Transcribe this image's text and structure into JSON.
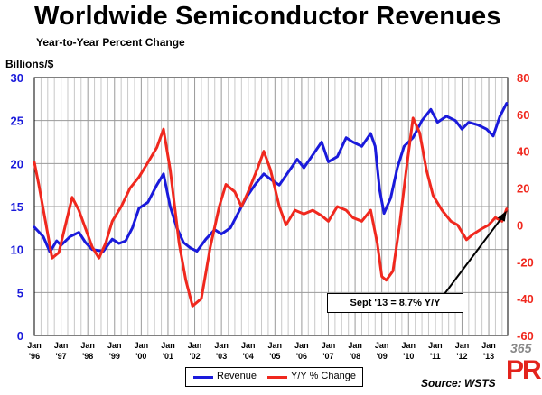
{
  "chart_data": {
    "type": "line",
    "title": "Worldwide Semiconductor Revenues",
    "subtitle": "Year-to-Year Percent Change",
    "ylabel_left": "Billions/$",
    "source": "Source: WSTS",
    "left_axis": {
      "min": 0,
      "max": 30,
      "ticks": [
        "0",
        "5",
        "10",
        "15",
        "20",
        "25",
        "30"
      ]
    },
    "right_axis": {
      "min": -60,
      "max": 80,
      "ticks": [
        "-60",
        "-40",
        "-20",
        "0",
        "20",
        "40",
        "60",
        "80"
      ]
    },
    "x_ticks": [
      {
        "month": "Jan",
        "year": "'96"
      },
      {
        "month": "Jan",
        "year": "'97"
      },
      {
        "month": "Jan",
        "year": "'98"
      },
      {
        "month": "Jan",
        "year": "'99"
      },
      {
        "month": "Jan",
        "year": "'00"
      },
      {
        "month": "Jan",
        "year": "'01"
      },
      {
        "month": "Jan",
        "year": "'02"
      },
      {
        "month": "Jan",
        "year": "'03"
      },
      {
        "month": "Jan",
        "year": "'04"
      },
      {
        "month": "Jan",
        "year": "'05"
      },
      {
        "month": "Jan",
        "year": "'06"
      },
      {
        "month": "Jan",
        "year": "'07"
      },
      {
        "month": "Jan",
        "year": "'08"
      },
      {
        "month": "Jan",
        "year": "'09"
      },
      {
        "month": "Jan",
        "year": "'10"
      },
      {
        "month": "Jan",
        "year": "'11"
      },
      {
        "month": "Jan",
        "year": "'12"
      },
      {
        "month": "Jan",
        "year": "'13"
      }
    ],
    "x_range": [
      "1996-01",
      "2013-09"
    ],
    "grid": true,
    "legend_position": "bottom",
    "series": [
      {
        "name": "Revenue",
        "axis": "left",
        "color": "#1a1adb",
        "points": [
          [
            "1996-01",
            12.6
          ],
          [
            "1996-05",
            11.5
          ],
          [
            "1996-08",
            9.7
          ],
          [
            "1996-11",
            11.0
          ],
          [
            "1997-01",
            10.5
          ],
          [
            "1997-05",
            11.5
          ],
          [
            "1997-09",
            12.0
          ],
          [
            "1997-12",
            10.8
          ],
          [
            "1998-03",
            10.0
          ],
          [
            "1998-08",
            9.8
          ],
          [
            "1998-12",
            11.2
          ],
          [
            "1999-03",
            10.7
          ],
          [
            "1999-06",
            11.0
          ],
          [
            "1999-09",
            12.5
          ],
          [
            "1999-12",
            14.8
          ],
          [
            "2000-04",
            15.5
          ],
          [
            "2000-08",
            17.5
          ],
          [
            "2000-11",
            18.8
          ],
          [
            "2001-02",
            15.0
          ],
          [
            "2001-05",
            12.5
          ],
          [
            "2001-08",
            10.8
          ],
          [
            "2001-11",
            10.2
          ],
          [
            "2002-02",
            9.8
          ],
          [
            "2002-06",
            11.2
          ],
          [
            "2002-10",
            12.3
          ],
          [
            "2003-01",
            11.8
          ],
          [
            "2003-05",
            12.5
          ],
          [
            "2003-09",
            14.5
          ],
          [
            "2003-12",
            16.0
          ],
          [
            "2004-04",
            17.5
          ],
          [
            "2004-08",
            18.8
          ],
          [
            "2004-12",
            18.0
          ],
          [
            "2005-03",
            17.5
          ],
          [
            "2005-07",
            19.0
          ],
          [
            "2005-11",
            20.5
          ],
          [
            "2006-02",
            19.5
          ],
          [
            "2006-06",
            21.0
          ],
          [
            "2006-10",
            22.5
          ],
          [
            "2007-01",
            20.2
          ],
          [
            "2007-05",
            20.8
          ],
          [
            "2007-09",
            23.0
          ],
          [
            "2007-12",
            22.5
          ],
          [
            "2008-04",
            22.0
          ],
          [
            "2008-08",
            23.5
          ],
          [
            "2008-10",
            22.0
          ],
          [
            "2008-12",
            17.0
          ],
          [
            "2009-02",
            14.2
          ],
          [
            "2009-05",
            16.0
          ],
          [
            "2009-08",
            19.5
          ],
          [
            "2009-11",
            22.0
          ],
          [
            "2010-03",
            23.0
          ],
          [
            "2010-07",
            25.0
          ],
          [
            "2010-11",
            26.3
          ],
          [
            "2011-02",
            24.8
          ],
          [
            "2011-06",
            25.5
          ],
          [
            "2011-10",
            25.0
          ],
          [
            "2012-01",
            24.0
          ],
          [
            "2012-04",
            24.8
          ],
          [
            "2012-08",
            24.5
          ],
          [
            "2012-12",
            24.0
          ],
          [
            "2013-03",
            23.2
          ],
          [
            "2013-06",
            25.5
          ],
          [
            "2013-09",
            27.0
          ]
        ]
      },
      {
        "name": "Y/Y % Change",
        "axis": "right",
        "color": "#f0281e",
        "points": [
          [
            "1996-01",
            34
          ],
          [
            "1996-03",
            22
          ],
          [
            "1996-06",
            2
          ],
          [
            "1996-09",
            -18
          ],
          [
            "1996-12",
            -15
          ],
          [
            "1997-03",
            0
          ],
          [
            "1997-06",
            15
          ],
          [
            "1997-09",
            8
          ],
          [
            "1997-12",
            -2
          ],
          [
            "1998-03",
            -12
          ],
          [
            "1998-06",
            -18
          ],
          [
            "1998-09",
            -10
          ],
          [
            "1998-12",
            2
          ],
          [
            "1999-04",
            10
          ],
          [
            "1999-08",
            20
          ],
          [
            "1999-12",
            26
          ],
          [
            "2000-04",
            34
          ],
          [
            "2000-08",
            42
          ],
          [
            "2000-11",
            52
          ],
          [
            "2001-02",
            30
          ],
          [
            "2001-06",
            -10
          ],
          [
            "2001-09",
            -30
          ],
          [
            "2001-12",
            -44
          ],
          [
            "2002-04",
            -40
          ],
          [
            "2002-08",
            -12
          ],
          [
            "2002-12",
            10
          ],
          [
            "2003-03",
            22
          ],
          [
            "2003-07",
            18
          ],
          [
            "2003-10",
            10
          ],
          [
            "2004-01",
            18
          ],
          [
            "2004-05",
            30
          ],
          [
            "2004-08",
            40
          ],
          [
            "2004-11",
            30
          ],
          [
            "2005-03",
            10
          ],
          [
            "2005-06",
            0
          ],
          [
            "2005-10",
            8
          ],
          [
            "2006-02",
            6
          ],
          [
            "2006-06",
            8
          ],
          [
            "2006-10",
            5
          ],
          [
            "2007-01",
            2
          ],
          [
            "2007-05",
            10
          ],
          [
            "2007-09",
            8
          ],
          [
            "2007-12",
            4
          ],
          [
            "2008-04",
            2
          ],
          [
            "2008-08",
            8
          ],
          [
            "2008-11",
            -10
          ],
          [
            "2009-01",
            -28
          ],
          [
            "2009-03",
            -30
          ],
          [
            "2009-06",
            -25
          ],
          [
            "2009-09",
            0
          ],
          [
            "2009-12",
            30
          ],
          [
            "2010-03",
            58
          ],
          [
            "2010-06",
            50
          ],
          [
            "2010-09",
            30
          ],
          [
            "2010-12",
            16
          ],
          [
            "2011-04",
            8
          ],
          [
            "2011-08",
            2
          ],
          [
            "2011-11",
            0
          ],
          [
            "2012-03",
            -8
          ],
          [
            "2012-06",
            -5
          ],
          [
            "2012-10",
            -2
          ],
          [
            "2013-01",
            0
          ],
          [
            "2013-04",
            4
          ],
          [
            "2013-07",
            2
          ],
          [
            "2013-09",
            8.7
          ]
        ]
      }
    ],
    "annotation": {
      "text": "Sept '13 = 8.7% Y/Y"
    }
  },
  "legend": [
    {
      "name": "Revenue",
      "color": "#1a1adb"
    },
    {
      "name": "Y/Y % Change",
      "color": "#f0281e"
    }
  ],
  "watermark": {
    "number": "365",
    "letters": "PR"
  }
}
